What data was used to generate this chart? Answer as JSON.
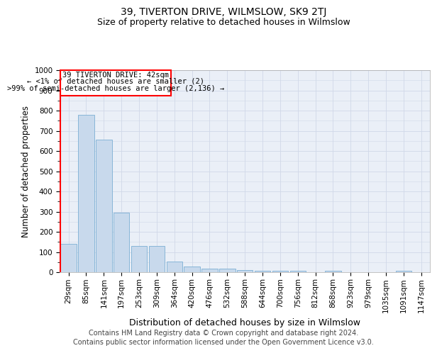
{
  "title": "39, TIVERTON DRIVE, WILMSLOW, SK9 2TJ",
  "subtitle": "Size of property relative to detached houses in Wilmslow",
  "xlabel": "Distribution of detached houses by size in Wilmslow",
  "ylabel": "Number of detached properties",
  "bar_color": "#c8d9ec",
  "bar_edge_color": "#7bafd4",
  "categories": [
    "29sqm",
    "85sqm",
    "141sqm",
    "197sqm",
    "253sqm",
    "309sqm",
    "364sqm",
    "420sqm",
    "476sqm",
    "532sqm",
    "588sqm",
    "644sqm",
    "700sqm",
    "756sqm",
    "812sqm",
    "868sqm",
    "923sqm",
    "979sqm",
    "1035sqm",
    "1091sqm",
    "1147sqm"
  ],
  "values": [
    140,
    780,
    655,
    293,
    130,
    130,
    52,
    27,
    18,
    18,
    10,
    8,
    8,
    8,
    0,
    8,
    0,
    0,
    0,
    8,
    0
  ],
  "ylim": [
    0,
    1000
  ],
  "yticks": [
    0,
    100,
    200,
    300,
    400,
    500,
    600,
    700,
    800,
    900,
    1000
  ],
  "annotation_box_text_line1": "39 TIVERTON DRIVE: 42sqm",
  "annotation_box_text_line2": "← <1% of detached houses are smaller (2)",
  "annotation_box_text_line3": ">99% of semi-detached houses are larger (2,136) →",
  "box_color": "red",
  "grid_color": "#d0d8e8",
  "background_color": "#eaeff7",
  "footer_line1": "Contains HM Land Registry data © Crown copyright and database right 2024.",
  "footer_line2": "Contains public sector information licensed under the Open Government Licence v3.0.",
  "title_fontsize": 10,
  "subtitle_fontsize": 9,
  "tick_fontsize": 7.5,
  "ylabel_fontsize": 8.5,
  "xlabel_fontsize": 9,
  "footer_fontsize": 7,
  "ann_fontsize": 7.5
}
